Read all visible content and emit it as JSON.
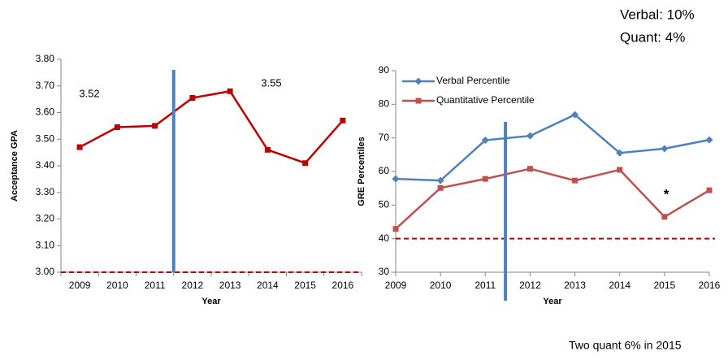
{
  "chart_data": [
    {
      "type": "line",
      "y_label": "Acceptance GPA",
      "x_label": "Year",
      "categories": [
        "2009",
        "2010",
        "2011",
        "2012",
        "2013",
        "2014",
        "2015",
        "2016"
      ],
      "values": [
        3.47,
        3.545,
        3.55,
        3.655,
        3.68,
        3.46,
        3.41,
        3.57
      ],
      "color": "#c00000",
      "ylim": [
        3.0,
        3.8
      ],
      "yticks": [
        {
          "value": 3.0,
          "label": "3.00"
        },
        {
          "value": 3.1,
          "label": "3.10"
        },
        {
          "value": 3.2,
          "label": "3.20"
        },
        {
          "value": 3.3,
          "label": "3.30"
        },
        {
          "value": 3.4,
          "label": "3.40"
        },
        {
          "value": 3.5,
          "label": "3.50"
        },
        {
          "value": 3.6,
          "label": "3.60"
        },
        {
          "value": 3.7,
          "label": "3.70"
        },
        {
          "value": 3.8,
          "label": "3.80"
        }
      ],
      "annotations": [
        "3.52",
        "3.55"
      ],
      "reference_line": 3.0,
      "reference_color": "#c00000",
      "divider": 2011.5,
      "divider_color": "#4f81bd"
    },
    {
      "type": "line",
      "y_label": "GRE Percentiles",
      "x_label": "Year",
      "x": [
        2009,
        2010,
        2011,
        2012,
        2013,
        2014,
        2015,
        2016
      ],
      "series": [
        {
          "name": "Verbal Percentile",
          "color": "#4f81bd",
          "values": [
            57.8,
            57.3,
            69.3,
            70.6,
            76.9,
            65.5,
            66.8,
            69.4
          ]
        },
        {
          "name": "Quantitative Percentile",
          "color": "#c0504d",
          "values": [
            42.9,
            55.1,
            57.8,
            60.8,
            57.3,
            60.5,
            46.5,
            54.4
          ]
        }
      ],
      "xlim": [
        2009,
        2016
      ],
      "xticks": [
        2009,
        2010,
        2011,
        2012,
        2013,
        2014,
        2015,
        2016
      ],
      "ylim": [
        30,
        90
      ],
      "yticks": [
        30,
        40,
        50,
        60,
        70,
        80,
        90
      ],
      "annotations": [
        "*"
      ],
      "reference_line": 40,
      "reference_color": "#c00000",
      "divider": 2011.45,
      "divider_color": "#4f81bd"
    }
  ],
  "notes": [
    "Verbal: 10%",
    "Quant: 4%",
    "Two quant 6% in 2015"
  ]
}
